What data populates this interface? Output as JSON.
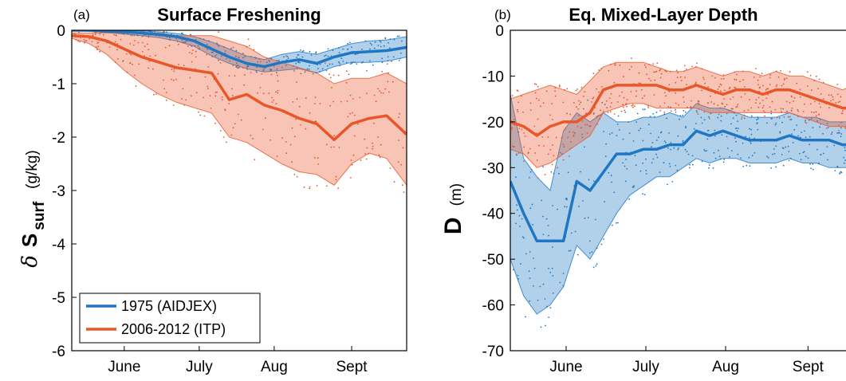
{
  "chart_data": [
    {
      "panel_tag": "(a)",
      "title": "Surface Freshening",
      "type": "line",
      "ylabel_symbol": "δ",
      "ylabel_var": "S",
      "ylabel_sub": "surf",
      "ylabel_unit": "(g/kg)",
      "xlim": [
        1,
        135
      ],
      "ylim": [
        -6,
        0
      ],
      "yticks": [
        0,
        -1,
        -2,
        -3,
        -4,
        -5,
        -6
      ],
      "xticks": [
        {
          "label": "June",
          "x": 22
        },
        {
          "label": "July",
          "x": 52
        },
        {
          "label": "Aug",
          "x": 82
        },
        {
          "label": "Sept",
          "x": 113
        }
      ],
      "legend_location": "lower-left",
      "series": [
        {
          "name": "1975 (AIDJEX)",
          "color": "#1f77c4",
          "x": [
            1,
            8,
            15,
            22,
            29,
            36,
            43,
            50,
            57,
            64,
            71,
            78,
            85,
            92,
            99,
            106,
            113,
            120,
            127,
            135
          ],
          "y": [
            0,
            0,
            -0.02,
            -0.03,
            -0.05,
            -0.08,
            -0.12,
            -0.2,
            -0.35,
            -0.5,
            -0.62,
            -0.68,
            -0.6,
            -0.55,
            -0.62,
            -0.5,
            -0.42,
            -0.4,
            -0.38,
            -0.32
          ],
          "upper": [
            0,
            0,
            0,
            0,
            -0.01,
            -0.03,
            -0.06,
            -0.12,
            -0.22,
            -0.35,
            -0.48,
            -0.55,
            -0.45,
            -0.4,
            -0.45,
            -0.35,
            -0.25,
            -0.2,
            -0.18,
            -0.12
          ],
          "lower": [
            0,
            -0.02,
            -0.04,
            -0.07,
            -0.1,
            -0.14,
            -0.2,
            -0.3,
            -0.48,
            -0.62,
            -0.72,
            -0.78,
            -0.75,
            -0.72,
            -0.8,
            -0.68,
            -0.6,
            -0.6,
            -0.58,
            -0.5
          ]
        },
        {
          "name": "2006-2012 (ITP)",
          "color": "#e8562a",
          "x": [
            1,
            8,
            15,
            22,
            29,
            36,
            43,
            50,
            57,
            64,
            71,
            78,
            85,
            92,
            99,
            106,
            113,
            120,
            127,
            135
          ],
          "y": [
            -0.1,
            -0.12,
            -0.2,
            -0.35,
            -0.5,
            -0.6,
            -0.7,
            -0.75,
            -0.8,
            -1.3,
            -1.2,
            -1.4,
            -1.5,
            -1.65,
            -1.75,
            -2.05,
            -1.75,
            -1.65,
            -1.6,
            -1.95
          ],
          "upper": [
            -0.05,
            -0.05,
            -0.05,
            -0.05,
            -0.05,
            -0.05,
            -0.1,
            -0.1,
            -0.1,
            -0.2,
            -0.3,
            -0.5,
            -0.6,
            -0.7,
            -0.8,
            -1.0,
            -0.9,
            -0.9,
            -0.8,
            -1.0
          ],
          "lower": [
            -0.15,
            -0.25,
            -0.45,
            -0.75,
            -1.0,
            -1.2,
            -1.35,
            -1.45,
            -1.55,
            -2.0,
            -2.1,
            -2.3,
            -2.5,
            -2.65,
            -2.7,
            -2.9,
            -2.5,
            -2.3,
            -2.4,
            -2.9
          ]
        }
      ]
    },
    {
      "panel_tag": "(b)",
      "title": "Eq. Mixed-Layer Depth",
      "type": "line",
      "ylabel_var": "D",
      "ylabel_unit": "(m)",
      "xlim": [
        1,
        130
      ],
      "ylim": [
        -70,
        0
      ],
      "yticks": [
        0,
        -10,
        -20,
        -30,
        -40,
        -50,
        -60,
        -70
      ],
      "xticks": [
        {
          "label": "June",
          "x": 22
        },
        {
          "label": "July",
          "x": 52
        },
        {
          "label": "Aug",
          "x": 82
        },
        {
          "label": "Sept",
          "x": 113
        }
      ],
      "series": [
        {
          "name": "1975 (AIDJEX)",
          "color": "#1f77c4",
          "x": [
            1,
            6,
            11,
            16,
            21,
            26,
            31,
            36,
            41,
            46,
            51,
            56,
            61,
            66,
            71,
            76,
            81,
            86,
            91,
            96,
            101,
            106,
            111,
            116,
            121,
            126,
            130
          ],
          "y": [
            -33,
            -40,
            -46,
            -46,
            -46,
            -33,
            -35,
            -31,
            -27,
            -27,
            -26,
            -26,
            -25,
            -25,
            -22,
            -23,
            -22,
            -23,
            -24,
            -24,
            -24,
            -23,
            -24,
            -24,
            -24,
            -25,
            -25
          ],
          "upper": [
            -14,
            -28,
            -32,
            -35,
            -22,
            -18,
            -20,
            -18,
            -20,
            -20,
            -19,
            -19,
            -18,
            -19,
            -16,
            -17,
            -17,
            -18,
            -19,
            -19,
            -19,
            -18,
            -19,
            -19,
            -20,
            -20,
            -20
          ],
          "lower": [
            -50,
            -58,
            -62,
            -60,
            -56,
            -47,
            -50,
            -45,
            -40,
            -36,
            -34,
            -32,
            -32,
            -30,
            -28,
            -29,
            -28,
            -28,
            -29,
            -29,
            -29,
            -28,
            -29,
            -29,
            -30,
            -30,
            -30
          ]
        },
        {
          "name": "2006-2012 (ITP)",
          "color": "#e8562a",
          "x": [
            1,
            6,
            11,
            16,
            21,
            26,
            31,
            36,
            41,
            46,
            51,
            56,
            61,
            66,
            71,
            76,
            81,
            86,
            91,
            96,
            101,
            106,
            111,
            116,
            121,
            126,
            130
          ],
          "y": [
            -20,
            -21,
            -23,
            -21,
            -20,
            -20,
            -18,
            -13,
            -12,
            -12,
            -12,
            -12,
            -13,
            -13,
            -12,
            -13,
            -14,
            -13,
            -13,
            -14,
            -13,
            -13,
            -14,
            -15,
            -16,
            -17,
            -17
          ],
          "upper": [
            -15,
            -14,
            -13,
            -12,
            -13,
            -14,
            -11,
            -8,
            -7,
            -7,
            -7,
            -8,
            -9,
            -9,
            -8,
            -9,
            -10,
            -9,
            -9,
            -10,
            -9,
            -10,
            -10,
            -11,
            -12,
            -13,
            -12
          ],
          "lower": [
            -26,
            -27,
            -30,
            -29,
            -27,
            -25,
            -23,
            -18,
            -17,
            -16,
            -16,
            -17,
            -17,
            -17,
            -17,
            -18,
            -18,
            -18,
            -18,
            -18,
            -18,
            -18,
            -19,
            -20,
            -21,
            -21,
            -22
          ]
        }
      ]
    }
  ]
}
